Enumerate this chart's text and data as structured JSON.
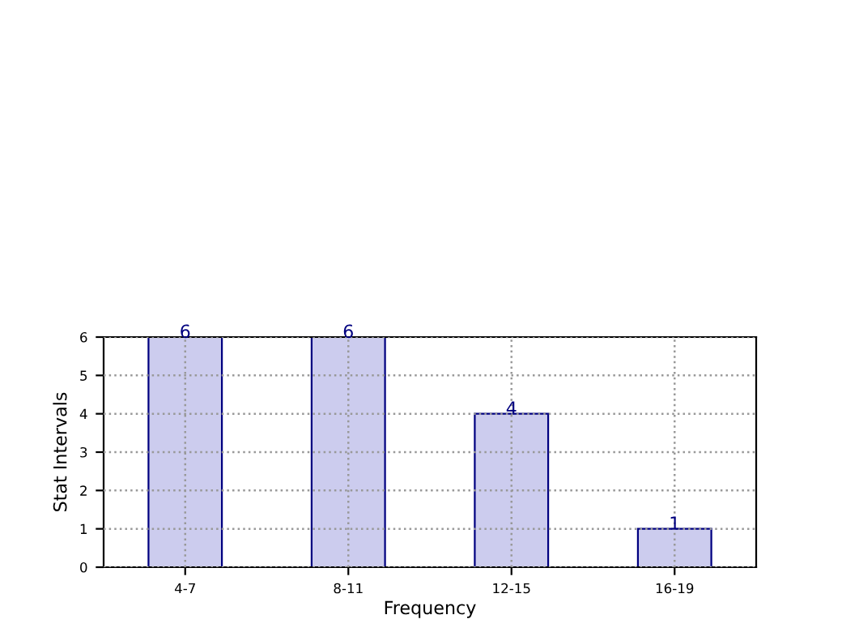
{
  "chart_data": {
    "type": "bar",
    "xlabel": "Frequency",
    "ylabel": "Stat Intervals",
    "categories": [
      "4-7",
      "8-11",
      "12-15",
      "16-19"
    ],
    "values": [
      6,
      6,
      4,
      1
    ],
    "color": "#ccccee",
    "ylim": [
      0,
      6
    ],
    "yticks": [
      0,
      1,
      2,
      3,
      4,
      5,
      6
    ],
    "grid": true,
    "data_labels": true
  }
}
